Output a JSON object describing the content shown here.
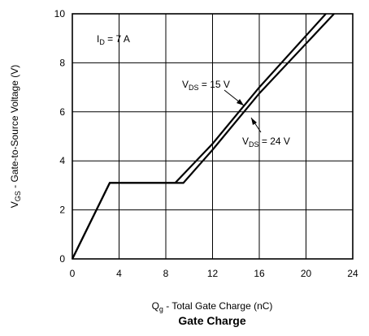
{
  "chart_data": {
    "type": "line",
    "title": "Gate Charge",
    "xlabel": {
      "main": "Q",
      "sub": "g",
      "rest": " - Total Gate Charge (nC)"
    },
    "ylabel": {
      "main": "V",
      "sub": "GS",
      "rest": " - Gate-to-Source Voltage (V)"
    },
    "xlim": [
      0,
      24
    ],
    "ylim": [
      0,
      10
    ],
    "x_ticks": [
      0,
      4,
      8,
      12,
      16,
      20,
      24
    ],
    "y_ticks": [
      0,
      2,
      4,
      6,
      8,
      10
    ],
    "grid": true,
    "series": [
      {
        "name": {
          "main": "V",
          "sub": "DS",
          "rest": " = 15 V"
        },
        "points": [
          [
            0,
            0
          ],
          [
            3.2,
            3.1
          ],
          [
            8.8,
            3.1
          ],
          [
            12.0,
            4.7
          ],
          [
            16.0,
            7.0
          ],
          [
            21.7,
            10.0
          ]
        ]
      },
      {
        "name": {
          "main": "V",
          "sub": "DS",
          "rest": " = 24 V"
        },
        "points": [
          [
            0,
            0
          ],
          [
            3.2,
            3.1
          ],
          [
            9.5,
            3.1
          ],
          [
            12.0,
            4.45
          ],
          [
            16.0,
            6.75
          ],
          [
            22.4,
            10.0
          ]
        ]
      }
    ],
    "annotations": [
      {
        "main": "I",
        "sub": "D",
        "rest": " = 7 A"
      }
    ]
  }
}
